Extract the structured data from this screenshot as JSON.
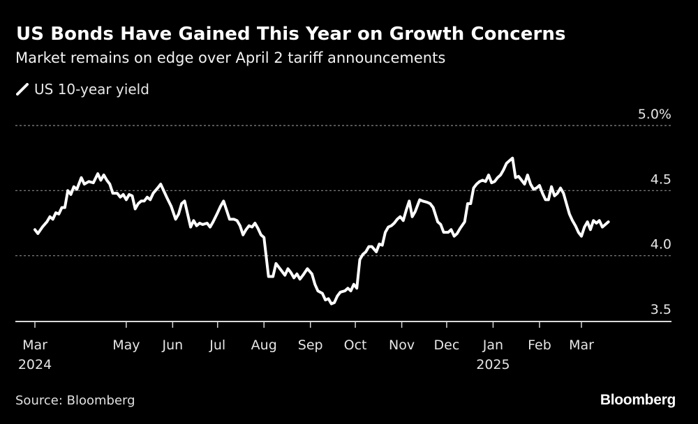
{
  "header": {
    "title": "US Bonds Have Gained This Year on Growth Concerns",
    "subtitle": "Market remains on edge over April 2 tariff announcements"
  },
  "legend": {
    "items": [
      {
        "label": "US 10-year yield",
        "color": "#ffffff",
        "icon": "line-swatch-icon"
      }
    ]
  },
  "footer": {
    "source": "Source: Bloomberg",
    "brand": "Bloomberg"
  },
  "chart_data": {
    "type": "line",
    "title": "US Bonds Have Gained This Year on Growth Concerns",
    "subtitle": "Market remains on edge over April 2 tariff announcements",
    "xlabel": "",
    "ylabel": "",
    "ylim": [
      3.5,
      5.0
    ],
    "yticks": [
      3.5,
      4.0,
      4.5,
      5.0
    ],
    "ytick_labels": [
      "3.5",
      "4.0",
      "4.5",
      "5.0%"
    ],
    "grid": true,
    "legend_position": "top-left",
    "x_range": [
      "2024-02-29",
      "2025-03-31"
    ],
    "xticks": [
      {
        "date": "2024-03-01",
        "label": "Mar",
        "sub": "2024"
      },
      {
        "date": "2024-05-01",
        "label": "May",
        "sub": ""
      },
      {
        "date": "2024-06-01",
        "label": "Jun",
        "sub": ""
      },
      {
        "date": "2024-07-01",
        "label": "Jul",
        "sub": ""
      },
      {
        "date": "2024-08-01",
        "label": "Aug",
        "sub": ""
      },
      {
        "date": "2024-09-01",
        "label": "Sep",
        "sub": ""
      },
      {
        "date": "2024-10-01",
        "label": "Oct",
        "sub": ""
      },
      {
        "date": "2024-11-01",
        "label": "Nov",
        "sub": ""
      },
      {
        "date": "2024-12-01",
        "label": "Dec",
        "sub": ""
      },
      {
        "date": "2025-01-01",
        "label": "Jan",
        "sub": "2025"
      },
      {
        "date": "2025-02-01",
        "label": "Feb",
        "sub": ""
      },
      {
        "date": "2025-03-01",
        "label": "Mar",
        "sub": ""
      }
    ],
    "series": [
      {
        "name": "US 10-year yield",
        "color": "#ffffff",
        "points": [
          [
            "2024-03-01",
            4.2
          ],
          [
            "2024-03-03",
            4.17
          ],
          [
            "2024-03-06",
            4.22
          ],
          [
            "2024-03-09",
            4.26
          ],
          [
            "2024-03-11",
            4.3
          ],
          [
            "2024-03-13",
            4.28
          ],
          [
            "2024-03-15",
            4.33
          ],
          [
            "2024-03-17",
            4.32
          ],
          [
            "2024-03-19",
            4.37
          ],
          [
            "2024-03-21",
            4.37
          ],
          [
            "2024-03-23",
            4.5
          ],
          [
            "2024-03-25",
            4.47
          ],
          [
            "2024-03-27",
            4.53
          ],
          [
            "2024-03-29",
            4.51
          ],
          [
            "2024-04-01",
            4.6
          ],
          [
            "2024-04-03",
            4.55
          ],
          [
            "2024-04-06",
            4.57
          ],
          [
            "2024-04-09",
            4.56
          ],
          [
            "2024-04-12",
            4.63
          ],
          [
            "2024-04-14",
            4.58
          ],
          [
            "2024-04-16",
            4.62
          ],
          [
            "2024-04-18",
            4.58
          ],
          [
            "2024-04-20",
            4.55
          ],
          [
            "2024-04-22",
            4.48
          ],
          [
            "2024-04-25",
            4.48
          ],
          [
            "2024-04-27",
            4.45
          ],
          [
            "2024-04-29",
            4.47
          ],
          [
            "2024-05-01",
            4.43
          ],
          [
            "2024-05-03",
            4.47
          ],
          [
            "2024-05-05",
            4.46
          ],
          [
            "2024-05-07",
            4.36
          ],
          [
            "2024-05-09",
            4.4
          ],
          [
            "2024-05-11",
            4.42
          ],
          [
            "2024-05-13",
            4.42
          ],
          [
            "2024-05-15",
            4.45
          ],
          [
            "2024-05-17",
            4.43
          ],
          [
            "2024-05-19",
            4.48
          ],
          [
            "2024-05-22",
            4.52
          ],
          [
            "2024-05-24",
            4.55
          ],
          [
            "2024-05-28",
            4.45
          ],
          [
            "2024-05-31",
            4.38
          ],
          [
            "2024-06-03",
            4.28
          ],
          [
            "2024-06-05",
            4.32
          ],
          [
            "2024-06-07",
            4.4
          ],
          [
            "2024-06-09",
            4.42
          ],
          [
            "2024-06-11",
            4.32
          ],
          [
            "2024-06-13",
            4.22
          ],
          [
            "2024-06-15",
            4.27
          ],
          [
            "2024-06-17",
            4.23
          ],
          [
            "2024-06-19",
            4.25
          ],
          [
            "2024-06-21",
            4.24
          ],
          [
            "2024-06-24",
            4.25
          ],
          [
            "2024-06-26",
            4.22
          ],
          [
            "2024-06-28",
            4.26
          ],
          [
            "2024-07-01",
            4.33
          ],
          [
            "2024-07-03",
            4.38
          ],
          [
            "2024-07-05",
            4.42
          ],
          [
            "2024-07-07",
            4.35
          ],
          [
            "2024-07-09",
            4.28
          ],
          [
            "2024-07-12",
            4.28
          ],
          [
            "2024-07-14",
            4.27
          ],
          [
            "2024-07-16",
            4.23
          ],
          [
            "2024-07-18",
            4.16
          ],
          [
            "2024-07-20",
            4.2
          ],
          [
            "2024-07-22",
            4.23
          ],
          [
            "2024-07-24",
            4.22
          ],
          [
            "2024-07-26",
            4.25
          ],
          [
            "2024-07-28",
            4.21
          ],
          [
            "2024-07-30",
            4.16
          ],
          [
            "2024-08-01",
            4.14
          ],
          [
            "2024-08-04",
            3.84
          ],
          [
            "2024-08-07",
            3.84
          ],
          [
            "2024-08-09",
            3.94
          ],
          [
            "2024-08-11",
            3.91
          ],
          [
            "2024-08-13",
            3.88
          ],
          [
            "2024-08-15",
            3.85
          ],
          [
            "2024-08-17",
            3.9
          ],
          [
            "2024-08-19",
            3.87
          ],
          [
            "2024-08-21",
            3.83
          ],
          [
            "2024-08-23",
            3.86
          ],
          [
            "2024-08-25",
            3.82
          ],
          [
            "2024-08-27",
            3.85
          ],
          [
            "2024-08-30",
            3.9
          ],
          [
            "2024-09-02",
            3.86
          ],
          [
            "2024-09-04",
            3.78
          ],
          [
            "2024-09-06",
            3.73
          ],
          [
            "2024-09-09",
            3.71
          ],
          [
            "2024-09-11",
            3.66
          ],
          [
            "2024-09-13",
            3.67
          ],
          [
            "2024-09-15",
            3.63
          ],
          [
            "2024-09-17",
            3.64
          ],
          [
            "2024-09-19",
            3.69
          ],
          [
            "2024-09-21",
            3.72
          ],
          [
            "2024-09-24",
            3.73
          ],
          [
            "2024-09-26",
            3.75
          ],
          [
            "2024-09-28",
            3.73
          ],
          [
            "2024-09-30",
            3.78
          ],
          [
            "2024-10-02",
            3.75
          ],
          [
            "2024-10-04",
            3.97
          ],
          [
            "2024-10-06",
            4.01
          ],
          [
            "2024-10-08",
            4.03
          ],
          [
            "2024-10-10",
            4.07
          ],
          [
            "2024-10-12",
            4.07
          ],
          [
            "2024-10-15",
            4.03
          ],
          [
            "2024-10-17",
            4.09
          ],
          [
            "2024-10-19",
            4.08
          ],
          [
            "2024-10-21",
            4.18
          ],
          [
            "2024-10-23",
            4.22
          ],
          [
            "2024-10-25",
            4.23
          ],
          [
            "2024-10-27",
            4.25
          ],
          [
            "2024-10-29",
            4.28
          ],
          [
            "2024-10-31",
            4.3
          ],
          [
            "2024-11-02",
            4.27
          ],
          [
            "2024-11-04",
            4.35
          ],
          [
            "2024-11-06",
            4.42
          ],
          [
            "2024-11-08",
            4.3
          ],
          [
            "2024-11-10",
            4.34
          ],
          [
            "2024-11-13",
            4.43
          ],
          [
            "2024-11-15",
            4.42
          ],
          [
            "2024-11-18",
            4.41
          ],
          [
            "2024-11-20",
            4.4
          ],
          [
            "2024-11-22",
            4.37
          ],
          [
            "2024-11-25",
            4.26
          ],
          [
            "2024-11-27",
            4.24
          ],
          [
            "2024-11-29",
            4.18
          ],
          [
            "2024-12-02",
            4.18
          ],
          [
            "2024-12-04",
            4.2
          ],
          [
            "2024-12-06",
            4.15
          ],
          [
            "2024-12-08",
            4.17
          ],
          [
            "2024-12-10",
            4.21
          ],
          [
            "2024-12-13",
            4.26
          ],
          [
            "2024-12-15",
            4.4
          ],
          [
            "2024-12-17",
            4.4
          ],
          [
            "2024-12-19",
            4.52
          ],
          [
            "2024-12-21",
            4.55
          ],
          [
            "2024-12-23",
            4.57
          ],
          [
            "2024-12-25",
            4.58
          ],
          [
            "2024-12-27",
            4.57
          ],
          [
            "2024-12-29",
            4.62
          ],
          [
            "2024-12-31",
            4.56
          ],
          [
            "2025-01-02",
            4.57
          ],
          [
            "2025-01-04",
            4.6
          ],
          [
            "2025-01-06",
            4.62
          ],
          [
            "2025-01-08",
            4.66
          ],
          [
            "2025-01-10",
            4.71
          ],
          [
            "2025-01-12",
            4.73
          ],
          [
            "2025-01-14",
            4.75
          ],
          [
            "2025-01-16",
            4.6
          ],
          [
            "2025-01-18",
            4.61
          ],
          [
            "2025-01-20",
            4.58
          ],
          [
            "2025-01-22",
            4.55
          ],
          [
            "2025-01-24",
            4.62
          ],
          [
            "2025-01-26",
            4.55
          ],
          [
            "2025-01-28",
            4.51
          ],
          [
            "2025-01-30",
            4.52
          ],
          [
            "2025-02-01",
            4.54
          ],
          [
            "2025-02-03",
            4.48
          ],
          [
            "2025-02-05",
            4.43
          ],
          [
            "2025-02-07",
            4.43
          ],
          [
            "2025-02-09",
            4.53
          ],
          [
            "2025-02-11",
            4.46
          ],
          [
            "2025-02-13",
            4.48
          ],
          [
            "2025-02-15",
            4.52
          ],
          [
            "2025-02-17",
            4.48
          ],
          [
            "2025-02-19",
            4.4
          ],
          [
            "2025-02-21",
            4.32
          ],
          [
            "2025-02-23",
            4.27
          ],
          [
            "2025-02-25",
            4.23
          ],
          [
            "2025-02-27",
            4.18
          ],
          [
            "2025-03-01",
            4.15
          ],
          [
            "2025-03-03",
            4.22
          ],
          [
            "2025-03-05",
            4.26
          ],
          [
            "2025-03-07",
            4.2
          ],
          [
            "2025-03-09",
            4.27
          ],
          [
            "2025-03-11",
            4.25
          ],
          [
            "2025-03-13",
            4.27
          ],
          [
            "2025-03-15",
            4.22
          ],
          [
            "2025-03-17",
            4.24
          ],
          [
            "2025-03-19",
            4.26
          ]
        ]
      }
    ]
  }
}
